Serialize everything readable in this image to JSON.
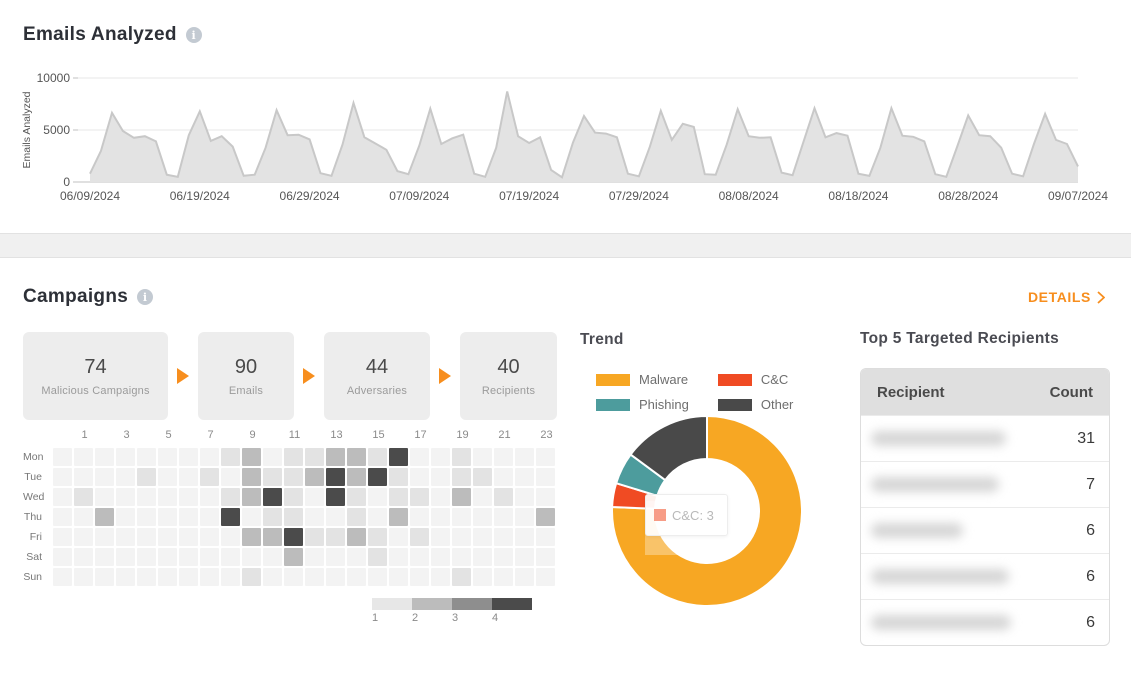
{
  "emails_section": {
    "title": "Emails Analyzed"
  },
  "campaigns_section": {
    "title": "Campaigns",
    "details_label": "DETAILS",
    "funnel": [
      {
        "value": "74",
        "label": "Malicious Campaigns"
      },
      {
        "value": "90",
        "label": "Emails"
      },
      {
        "value": "44",
        "label": "Adversaries"
      },
      {
        "value": "40",
        "label": "Recipients"
      }
    ]
  },
  "colors": {
    "accent_orange": "#f78e1e",
    "malware": "#f7a723",
    "cnc": "#f04b23",
    "phishing": "#4d9c9d",
    "other": "#494949",
    "area_fill": "#e3e3e3",
    "area_stroke": "#c8c8c8"
  },
  "chart_data": [
    {
      "id": "emails-analyzed",
      "type": "area",
      "title": "Emails Analyzed",
      "ylabel": "Emails Analyzed",
      "ylim": [
        0,
        10000
      ],
      "yticks": [
        0,
        5000,
        10000
      ],
      "grid": true,
      "x_tick_labels": [
        "06/09/2024",
        "06/19/2024",
        "06/29/2024",
        "07/09/2024",
        "07/19/2024",
        "07/29/2024",
        "08/08/2024",
        "08/18/2024",
        "08/28/2024",
        "09/07/2024"
      ],
      "values": [
        800,
        3000,
        6650,
        4900,
        4250,
        4400,
        3900,
        700,
        500,
        4500,
        6800,
        3950,
        4400,
        3400,
        600,
        700,
        3300,
        6900,
        4500,
        4550,
        4100,
        850,
        600,
        3600,
        7600,
        4300,
        3700,
        3100,
        1050,
        750,
        3500,
        7050,
        3650,
        4200,
        4550,
        800,
        500,
        3300,
        8700,
        4400,
        3750,
        4300,
        1150,
        450,
        3800,
        6350,
        4750,
        4650,
        4300,
        800,
        550,
        3400,
        6850,
        4050,
        5600,
        5300,
        750,
        700,
        3600,
        7000,
        4400,
        4250,
        4300,
        900,
        650,
        3900,
        7100,
        4300,
        4700,
        4450,
        800,
        600,
        3300,
        7100,
        4450,
        4350,
        3900,
        750,
        500,
        3400,
        6400,
        4500,
        4400,
        3300,
        800,
        550,
        3700,
        6550,
        4050,
        3650,
        1500
      ],
      "fill": "#e3e3e3",
      "stroke": "#c8c8c8"
    },
    {
      "id": "campaign-heatmap",
      "type": "heatmap",
      "row_labels": [
        "Mon",
        "Tue",
        "Wed",
        "Thu",
        "Fri",
        "Sat",
        "Sun"
      ],
      "hour_labels": [
        "1",
        "3",
        "5",
        "7",
        "9",
        "11",
        "13",
        "15",
        "17",
        "19",
        "21",
        "23"
      ],
      "col_count": 24,
      "palette": {
        "0": "#f3f3f3",
        "1": "#e3e3e3",
        "2": "#bcbcbc",
        "3": "#8e8e8e",
        "4": "#4b4b4b"
      },
      "grid": [
        [
          0,
          0,
          0,
          0,
          0,
          0,
          0,
          0,
          1,
          2,
          0,
          1,
          1,
          2,
          2,
          1,
          4,
          0,
          0,
          1,
          0,
          0,
          0,
          0
        ],
        [
          0,
          0,
          0,
          0,
          1,
          0,
          0,
          1,
          0,
          2,
          1,
          1,
          2,
          4,
          2,
          4,
          1,
          0,
          0,
          1,
          1,
          0,
          0,
          0
        ],
        [
          0,
          1,
          0,
          0,
          0,
          0,
          0,
          0,
          1,
          2,
          4,
          1,
          0,
          4,
          1,
          0,
          1,
          1,
          0,
          2,
          0,
          1,
          0,
          0
        ],
        [
          0,
          0,
          2,
          0,
          0,
          0,
          0,
          0,
          4,
          0,
          1,
          1,
          0,
          0,
          1,
          0,
          2,
          0,
          0,
          0,
          0,
          0,
          0,
          2
        ],
        [
          0,
          0,
          0,
          0,
          0,
          0,
          0,
          0,
          0,
          2,
          2,
          4,
          1,
          1,
          2,
          1,
          0,
          1,
          0,
          0,
          0,
          0,
          0,
          0
        ],
        [
          0,
          0,
          0,
          0,
          0,
          0,
          0,
          0,
          0,
          0,
          0,
          2,
          0,
          0,
          0,
          1,
          0,
          0,
          0,
          0,
          0,
          0,
          0,
          0
        ],
        [
          0,
          0,
          0,
          0,
          0,
          0,
          0,
          0,
          0,
          1,
          0,
          0,
          0,
          0,
          0,
          0,
          0,
          0,
          0,
          1,
          0,
          0,
          0,
          0
        ]
      ],
      "legend": [
        {
          "label": "1",
          "color": "#e7e7e7"
        },
        {
          "label": "2",
          "color": "#bcbcbc"
        },
        {
          "label": "3",
          "color": "#8e8e8e"
        },
        {
          "label": "4",
          "color": "#4b4b4b"
        }
      ]
    },
    {
      "id": "trend-donut",
      "type": "donut",
      "title": "Trend",
      "series": [
        {
          "name": "Malware",
          "value": 56,
          "color": "#f7a723"
        },
        {
          "name": "C&C",
          "value": 3,
          "color": "#f04b23"
        },
        {
          "name": "Phishing",
          "value": 4,
          "color": "#4d9c9d"
        },
        {
          "name": "Other",
          "value": 11,
          "color": "#494949"
        }
      ],
      "legend_order": [
        "Malware",
        "C&C",
        "Phishing",
        "Other"
      ],
      "tooltip": {
        "label": "C&C",
        "value": 3
      }
    },
    {
      "id": "top-recipients",
      "type": "table",
      "title": "Top 5 Targeted Recipients",
      "columns": [
        "Recipient",
        "Count"
      ],
      "rows": [
        {
          "recipient_redacted": true,
          "redacted_width": 135,
          "count": 31
        },
        {
          "recipient_redacted": true,
          "redacted_width": 128,
          "count": 7
        },
        {
          "recipient_redacted": true,
          "redacted_width": 92,
          "count": 6
        },
        {
          "recipient_redacted": true,
          "redacted_width": 138,
          "count": 6
        },
        {
          "recipient_redacted": true,
          "redacted_width": 140,
          "count": 6
        }
      ]
    }
  ]
}
